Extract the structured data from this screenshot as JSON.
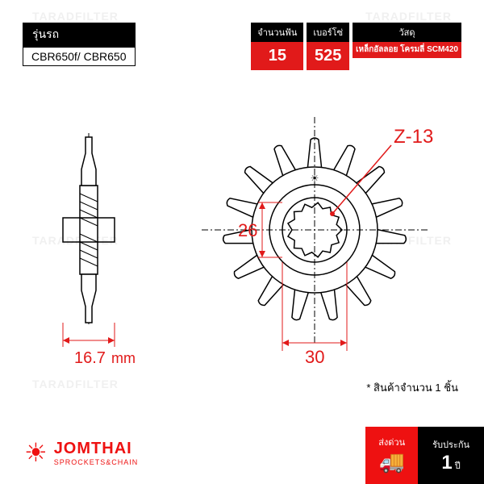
{
  "watermark": "TARADFILTER",
  "model": {
    "label": "รุ่นรถ",
    "value": "CBR650f/ CBR650"
  },
  "specs": {
    "teeth": {
      "label": "จำนวนฟัน",
      "value": "15",
      "bg": "#e11a1a"
    },
    "chain": {
      "label": "เบอร์โซ่",
      "value": "525",
      "bg": "#e11a1a"
    },
    "material": {
      "label": "วัสดุ",
      "value": "เหล็กอัลลอย\nโครมลี่ SCM420",
      "bg": "#e11a1a"
    }
  },
  "diagram": {
    "side_view": {
      "width_mm": "16.7",
      "unit": "mm"
    },
    "front_view": {
      "inner_dia": "26",
      "outer_dia": "30",
      "spline": "Z-13",
      "teeth_count": 15
    },
    "colors": {
      "dim": "#e11a1a",
      "line": "#000000",
      "fill": "#ffffff"
    }
  },
  "note": "* สินค้าจำนวน 1 ชิ้น",
  "logo": {
    "name": "JOMTHAI",
    "sub": "SPROCKETS&CHAIN"
  },
  "shipping": {
    "label": "ส่งด่วน"
  },
  "warranty": {
    "label": "รับประกัน",
    "value": "1",
    "unit": "ปี"
  }
}
